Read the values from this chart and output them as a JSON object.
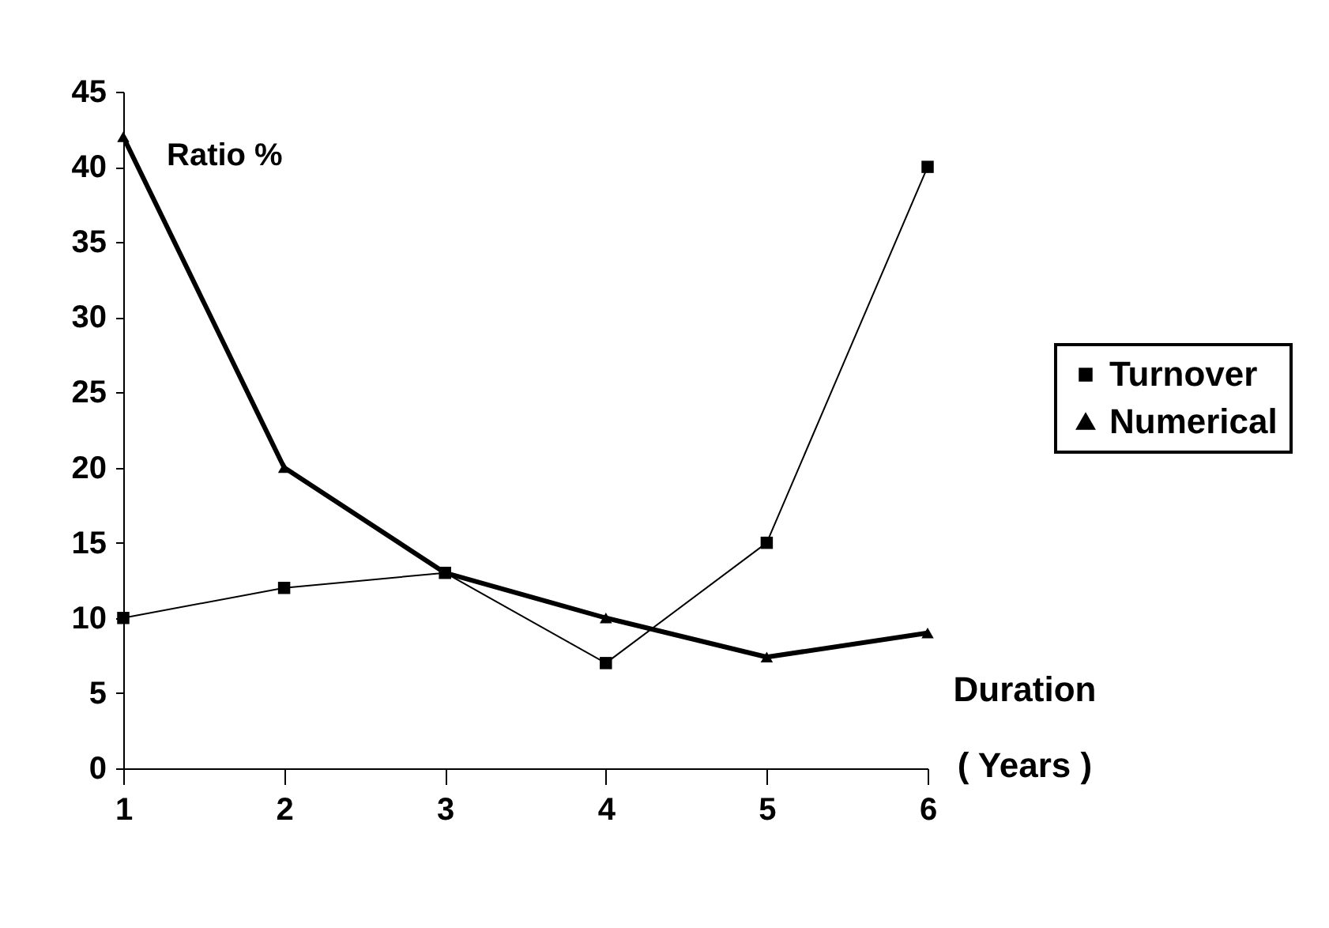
{
  "chart_data": {
    "type": "line",
    "ylabel": "Ratio %",
    "xlabel": "Duration\n( Years )",
    "categories": [
      "1",
      "2",
      "3",
      "4",
      "5",
      "6"
    ],
    "series": [
      {
        "name": "Turnover",
        "color": "#000000",
        "marker": "square",
        "values": [
          10,
          12,
          13,
          7,
          15,
          40
        ]
      },
      {
        "name": "Numerical",
        "color": "#000000",
        "marker": "triangle",
        "values": [
          42,
          20,
          13,
          10,
          7.4,
          9
        ]
      }
    ],
    "ylim": [
      0,
      45
    ],
    "yticks": [
      0,
      5,
      10,
      15,
      20,
      25,
      30,
      35,
      40,
      45
    ],
    "legend": "right",
    "line_style": "solid"
  }
}
